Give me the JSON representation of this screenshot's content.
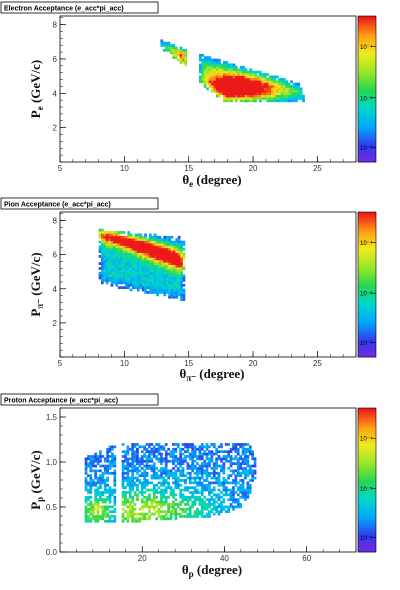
{
  "panels": [
    {
      "id": "electron",
      "title": "Electron Acceptance (e_acc*pi_acc)",
      "xlabel": "θe (degree)",
      "ylabel": "Pe (GeV/c)",
      "x_main": "θ",
      "x_sub": "e",
      "x_rest": " (degree)",
      "y_main": "P",
      "y_sub": "e",
      "y_rest": " (GeV/c)",
      "xticks": [
        "5",
        "10",
        "15",
        "20",
        "25"
      ],
      "yticks": [
        "2",
        "4",
        "6",
        "8"
      ],
      "ztick_labels": [
        "10⁻⁴",
        "10⁻⁵",
        "10⁻⁶"
      ]
    },
    {
      "id": "pion",
      "title": "Pion Acceptance (e_acc*pi_acc)",
      "xlabel": "θπ- (degree)",
      "ylabel": "Pπ- (GeV/c)",
      "x_main": "θ",
      "x_sub": "π⁻",
      "x_rest": " (degree)",
      "y_main": "P",
      "y_sub": "π⁻",
      "y_rest": " (GeV/c)",
      "xticks": [
        "5",
        "10",
        "15",
        "20",
        "25"
      ],
      "yticks": [
        "2",
        "4",
        "6",
        "8"
      ],
      "ztick_labels": [
        "10⁻⁴",
        "10⁻⁵",
        "10⁻⁶"
      ]
    },
    {
      "id": "proton",
      "title": "Proton Acceptance (e_acc*pi_acc)",
      "xlabel": "θp (degree)",
      "ylabel": "Pp (GeV/c)",
      "x_main": "θ",
      "x_sub": "p",
      "x_rest": " (degree)",
      "y_main": "P",
      "y_sub": "p",
      "y_rest": " (GeV/c)",
      "xticks": [
        "20",
        "40",
        "60"
      ],
      "yticks": [
        "0.0",
        "0.5",
        "1.0",
        "1.5"
      ],
      "ztick_labels": [
        "10⁻⁴",
        "10⁻⁵",
        "10⁻⁶"
      ]
    }
  ],
  "chart_data": [
    {
      "type": "heatmap",
      "title": "Electron Acceptance (e_acc*pi_acc)",
      "xlabel": "θe (degree)",
      "ylabel": "Pe (GeV/c)",
      "xlim": [
        5,
        28
      ],
      "ylim": [
        0,
        8.5
      ],
      "xticks": [
        5,
        10,
        15,
        20,
        25
      ],
      "yticks": [
        2,
        4,
        6,
        8
      ],
      "zscale": "log",
      "zlim": [
        1e-06,
        0.0003
      ],
      "ztick_labels": [
        "10⁻⁴",
        "10⁻⁵",
        "10⁻⁶"
      ],
      "regions": [
        {
          "polygon": [
            [
              12.8,
              7.15
            ],
            [
              14.8,
              6.55
            ],
            [
              14.8,
              5.6
            ],
            [
              12.8,
              6.6
            ]
          ],
          "peak": [
            14.5,
            5.9
          ],
          "peak_width": [
            1.2,
            0.6
          ]
        },
        {
          "polygon": [
            [
              15.8,
              6.3
            ],
            [
              24,
              4.5
            ],
            [
              24,
              3.5
            ],
            [
              17.8,
              3.5
            ],
            [
              15.8,
              4.6
            ]
          ],
          "peak": [
            18.5,
            4.2
          ],
          "peak_width": [
            2.6,
            0.8
          ]
        }
      ]
    },
    {
      "type": "heatmap",
      "title": "Pion Acceptance (e_acc*pi_acc)",
      "xlabel": "θπ- (degree)",
      "ylabel": "Pπ- (GeV/c)",
      "xlim": [
        5,
        28
      ],
      "ylim": [
        0,
        8.5
      ],
      "xticks": [
        5,
        10,
        15,
        20,
        25
      ],
      "yticks": [
        2,
        4,
        6,
        8
      ],
      "zscale": "log",
      "zlim": [
        1e-06,
        0.0003
      ],
      "ztick_labels": [
        "10⁻⁴",
        "10⁻⁵",
        "10⁻⁶"
      ],
      "regions": [
        {
          "polygon": [
            [
              8,
              7.5
            ],
            [
              14.8,
              7.0
            ],
            [
              14.8,
              3.3
            ],
            [
              8,
              4.3
            ]
          ],
          "peak_line": [
            [
              9,
              7.2
            ],
            [
              14.5,
              5.6
            ]
          ],
          "peak_width": [
            0.5
          ]
        }
      ]
    },
    {
      "type": "heatmap",
      "title": "Proton Acceptance (e_acc*pi_acc)",
      "xlabel": "θp (degree)",
      "ylabel": "Pp (GeV/c)",
      "xlim": [
        0,
        72
      ],
      "ylim": [
        0,
        1.6
      ],
      "xticks": [
        20,
        40,
        60
      ],
      "yticks": [
        0.0,
        0.5,
        1.0,
        1.5
      ],
      "zscale": "log",
      "zlim": [
        1e-06,
        0.0003
      ],
      "ztick_labels": [
        "10⁻⁴",
        "10⁻⁵",
        "10⁻⁶"
      ],
      "regions": [
        {
          "polygon": [
            [
              6,
              1.05
            ],
            [
              13.5,
              1.2
            ],
            [
              13.5,
              0.33
            ],
            [
              6,
              0.33
            ]
          ],
          "peak": [
            9,
            0.45
          ],
          "peak_width": [
            3,
            0.12
          ]
        },
        {
          "polygon": [
            [
              15,
              1.2
            ],
            [
              46,
              1.2
            ],
            [
              48,
              1.0
            ],
            [
              47,
              0.7
            ],
            [
              44,
              0.5
            ],
            [
              38,
              0.4
            ],
            [
              15,
              0.33
            ]
          ],
          "peak": [
            20,
            0.45
          ],
          "peak_width": [
            12,
            0.15
          ]
        }
      ]
    }
  ]
}
